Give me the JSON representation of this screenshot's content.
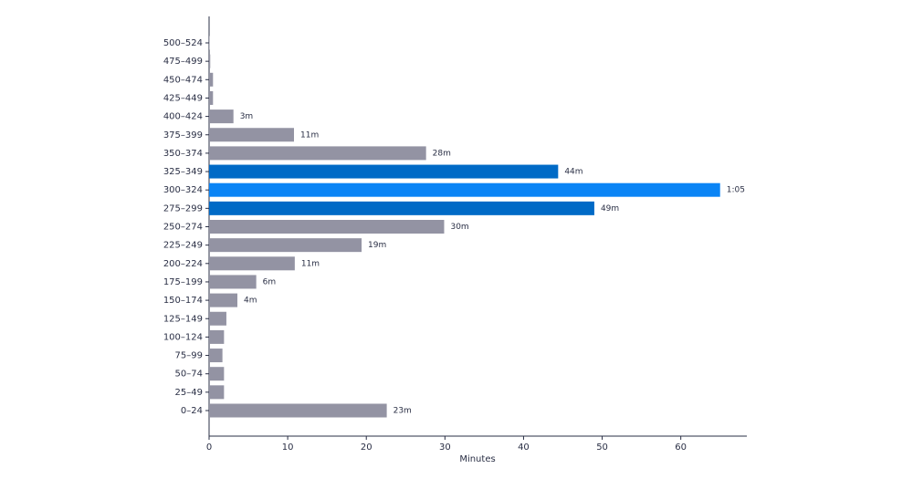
{
  "chart_data": {
    "type": "hbar",
    "x_label": "Minutes",
    "categories": [
      "0–24",
      "25–49",
      "50–74",
      "75–99",
      "100–124",
      "125–149",
      "150–174",
      "175–199",
      "200–224",
      "225–249",
      "250–274",
      "275–299",
      "300–324",
      "325–349",
      "350–374",
      "375–399",
      "400–424",
      "425–449",
      "450–474",
      "475–499",
      "500–524"
    ],
    "values": [
      22.6,
      1.9,
      1.9,
      1.7,
      1.9,
      2.2,
      3.6,
      6.0,
      10.9,
      19.4,
      29.9,
      49.0,
      65,
      44.4,
      27.6,
      10.8,
      3.1,
      0.5,
      0.5,
      0.15,
      0.05
    ],
    "value_labels": [
      "23m",
      null,
      null,
      null,
      null,
      null,
      "4m",
      "6m",
      "11m",
      "19m",
      "30m",
      "49m",
      "1:05",
      "44m",
      "28m",
      "11m",
      "3m",
      null,
      null,
      null,
      null
    ],
    "colors": [
      "#9393a3",
      "#9393a3",
      "#9393a3",
      "#9393a3",
      "#9393a3",
      "#9393a3",
      "#9393a3",
      "#9393a3",
      "#9393a3",
      "#9393a3",
      "#9393a3",
      "#006ac6",
      "#0a84f5",
      "#006ac6",
      "#9393a3",
      "#9393a3",
      "#9393a3",
      "#9393a3",
      "#9393a3",
      "#9393a3",
      "#9393a3"
    ],
    "xlim": [
      0,
      68.4
    ],
    "xticks": [
      0,
      10,
      20,
      30,
      40,
      50,
      60
    ]
  }
}
